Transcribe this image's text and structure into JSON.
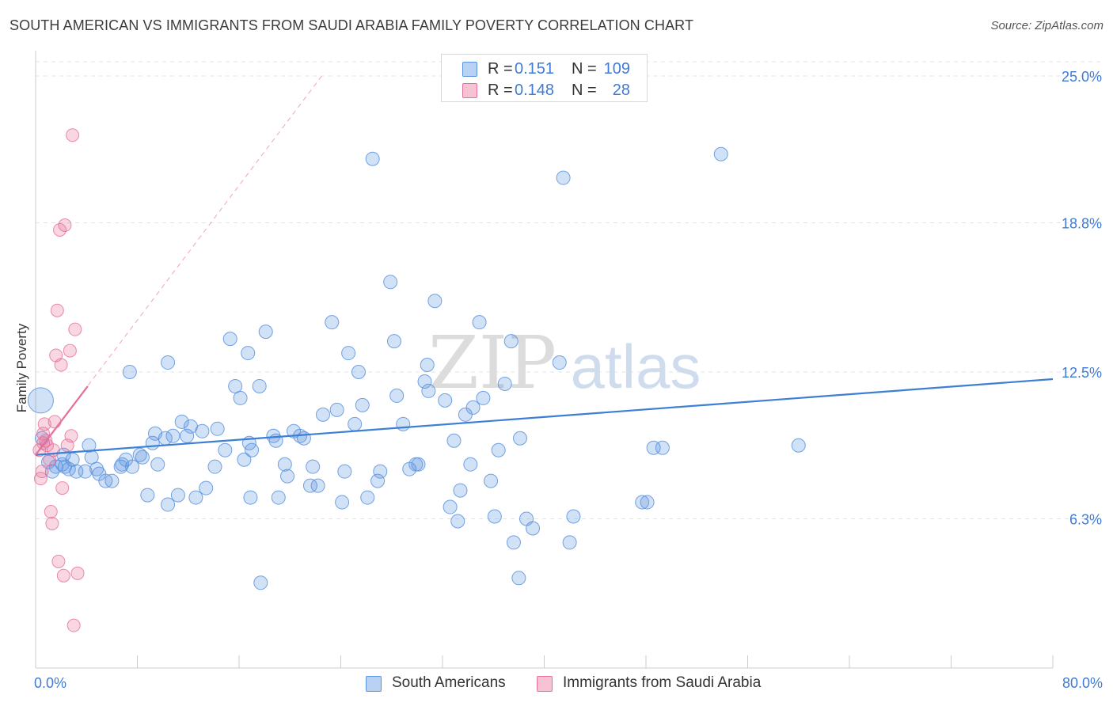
{
  "title": "SOUTH AMERICAN VS IMMIGRANTS FROM SAUDI ARABIA FAMILY POVERTY CORRELATION CHART",
  "source": "Source: ZipAtlas.com",
  "watermark": {
    "zip": "ZIP",
    "atlas": "atlas"
  },
  "legend": [
    {
      "name": "South Americans",
      "r_label": "R =",
      "r_value": "0.151",
      "n_label": "N =",
      "n_value": "109",
      "color": "#5b93e0",
      "fill": "#b9d2f3"
    },
    {
      "name": "Immigrants from Saudi Arabia",
      "r_label": "R =",
      "r_value": "0.148",
      "n_label": "N =",
      "n_value": "28",
      "color": "#e56f9a",
      "fill": "#f7c3d4"
    }
  ],
  "chart_data": {
    "type": "scatter",
    "title": "SOUTH AMERICAN VS IMMIGRANTS FROM SAUDI ARABIA FAMILY POVERTY CORRELATION CHART",
    "xlabel": "",
    "ylabel": "Family Poverty",
    "xlim": [
      0,
      80
    ],
    "ylim": [
      0,
      25.9
    ],
    "x_tick_labels": [
      "0.0%",
      "80.0%"
    ],
    "y_tick_labels": [
      "6.3%",
      "12.5%",
      "18.8%",
      "25.0%"
    ],
    "y_ticks": [
      6.3,
      12.5,
      18.8,
      25.0
    ],
    "grid": true,
    "legend_placement": "top-center",
    "series": [
      {
        "name": "South Americans",
        "color": "#5b93e0",
        "trend": {
          "x": [
            0,
            80
          ],
          "y": [
            9.0,
            12.2
          ]
        },
        "points": [
          [
            0.4,
            11.3
          ],
          [
            0.5,
            9.7
          ],
          [
            1,
            8.7
          ],
          [
            1.3,
            8.3
          ],
          [
            1.6,
            8.5
          ],
          [
            2.1,
            8.6
          ],
          [
            2.2,
            9.0
          ],
          [
            2.3,
            8.5
          ],
          [
            2.6,
            8.4
          ],
          [
            2.9,
            8.8
          ],
          [
            3.2,
            8.3
          ],
          [
            3.9,
            8.3
          ],
          [
            4.2,
            9.4
          ],
          [
            4.4,
            8.9
          ],
          [
            4.8,
            8.4
          ],
          [
            5,
            8.2
          ],
          [
            5.5,
            7.9
          ],
          [
            6.0,
            7.9
          ],
          [
            6.7,
            8.5
          ],
          [
            6.8,
            8.6
          ],
          [
            7.1,
            8.8
          ],
          [
            7.4,
            12.5
          ],
          [
            7.6,
            8.5
          ],
          [
            8.2,
            9.0
          ],
          [
            8.4,
            8.9
          ],
          [
            8.8,
            7.3
          ],
          [
            9.2,
            9.5
          ],
          [
            9.4,
            9.9
          ],
          [
            9.6,
            8.6
          ],
          [
            10.2,
            9.7
          ],
          [
            10.4,
            6.9
          ],
          [
            10.8,
            9.8
          ],
          [
            11.2,
            7.3
          ],
          [
            11.5,
            10.4
          ],
          [
            11.9,
            9.8
          ],
          [
            12.2,
            10.2
          ],
          [
            12.6,
            7.2
          ],
          [
            13.1,
            10.0
          ],
          [
            13.4,
            7.6
          ],
          [
            14.1,
            8.5
          ],
          [
            14.3,
            10.1
          ],
          [
            14.9,
            9.2
          ],
          [
            15.3,
            13.9
          ],
          [
            15.7,
            11.9
          ],
          [
            16.1,
            11.4
          ],
          [
            16.4,
            8.8
          ],
          [
            16.7,
            13.3
          ],
          [
            16.9,
            7.2
          ],
          [
            17.6,
            11.9
          ],
          [
            18.1,
            14.2
          ],
          [
            18.7,
            9.8
          ],
          [
            18.9,
            9.6
          ],
          [
            19.1,
            7.2
          ],
          [
            19.6,
            8.6
          ],
          [
            19.8,
            8.1
          ],
          [
            20.3,
            10.0
          ],
          [
            20.8,
            9.8
          ],
          [
            21.1,
            9.7
          ],
          [
            21.6,
            7.7
          ],
          [
            21.8,
            8.5
          ],
          [
            22.2,
            7.7
          ],
          [
            22.6,
            10.7
          ],
          [
            23.3,
            14.6
          ],
          [
            23.7,
            10.9
          ],
          [
            24.1,
            7.0
          ],
          [
            24.3,
            8.3
          ],
          [
            24.6,
            13.3
          ],
          [
            25.1,
            10.3
          ],
          [
            25.4,
            12.5
          ],
          [
            25.7,
            11.1
          ],
          [
            26.1,
            7.2
          ],
          [
            26.5,
            21.5
          ],
          [
            26.9,
            7.9
          ],
          [
            27.1,
            8.3
          ],
          [
            27.9,
            16.3
          ],
          [
            28.2,
            13.8
          ],
          [
            28.4,
            11.5
          ],
          [
            28.9,
            10.3
          ],
          [
            29.4,
            8.4
          ],
          [
            29.9,
            8.6
          ],
          [
            30.1,
            8.6
          ],
          [
            30.6,
            12.1
          ],
          [
            30.9,
            11.7
          ],
          [
            31.4,
            15.5
          ],
          [
            32.2,
            11.3
          ],
          [
            32.6,
            6.8
          ],
          [
            32.9,
            9.6
          ],
          [
            33.2,
            6.2
          ],
          [
            33.4,
            7.5
          ],
          [
            33.8,
            10.7
          ],
          [
            34.2,
            8.6
          ],
          [
            34.4,
            11.0
          ],
          [
            34.9,
            14.6
          ],
          [
            35.2,
            11.4
          ],
          [
            35.8,
            7.9
          ],
          [
            36.1,
            6.4
          ],
          [
            36.4,
            9.2
          ],
          [
            36.9,
            12.0
          ],
          [
            37.4,
            13.8
          ],
          [
            37.6,
            5.3
          ],
          [
            38.1,
            9.7
          ],
          [
            38.6,
            6.3
          ],
          [
            39.1,
            5.9
          ],
          [
            42.0,
            5.3
          ],
          [
            42.3,
            6.4
          ],
          [
            47.7,
            7.0
          ],
          [
            48.1,
            7.0
          ],
          [
            48.6,
            9.3
          ],
          [
            53.9,
            21.7
          ]
        ],
        "extra_points": [
          [
            10.4,
            12.9
          ],
          [
            16.8,
            9.5
          ],
          [
            17.0,
            9.2
          ],
          [
            38.0,
            3.8
          ],
          [
            41.5,
            20.7
          ],
          [
            49.3,
            9.3
          ],
          [
            60.0,
            9.4
          ],
          [
            17.7,
            3.6
          ],
          [
            30.8,
            12.8
          ],
          [
            41.2,
            12.9
          ]
        ]
      },
      {
        "name": "Immigrants from Saudi Arabia",
        "color": "#e56f9a",
        "trend": {
          "x": [
            0,
            4.1
          ],
          "y": [
            9.0,
            11.9
          ]
        },
        "trend_extended": {
          "x": [
            0,
            22.5
          ],
          "y": [
            9.0,
            25.0
          ]
        },
        "points": [
          [
            0.3,
            9.2
          ],
          [
            0.4,
            8.0
          ],
          [
            0.5,
            8.3
          ],
          [
            0.6,
            9.5
          ],
          [
            0.7,
            10.3
          ],
          [
            0.8,
            9.6
          ],
          [
            0.9,
            9.4
          ],
          [
            1.1,
            8.8
          ],
          [
            1.2,
            6.6
          ],
          [
            1.3,
            6.1
          ],
          [
            1.4,
            9.2
          ],
          [
            1.5,
            10.4
          ],
          [
            1.6,
            13.2
          ],
          [
            1.7,
            15.1
          ],
          [
            1.8,
            4.5
          ],
          [
            1.9,
            18.5
          ],
          [
            2.0,
            12.8
          ],
          [
            2.1,
            7.6
          ],
          [
            2.2,
            3.9
          ],
          [
            2.3,
            18.7
          ],
          [
            2.5,
            9.4
          ],
          [
            2.7,
            13.4
          ],
          [
            2.8,
            9.8
          ],
          [
            2.9,
            22.5
          ],
          [
            3.0,
            1.8
          ],
          [
            3.1,
            14.3
          ],
          [
            3.3,
            4.0
          ],
          [
            0.6,
            9.9
          ]
        ]
      }
    ]
  }
}
